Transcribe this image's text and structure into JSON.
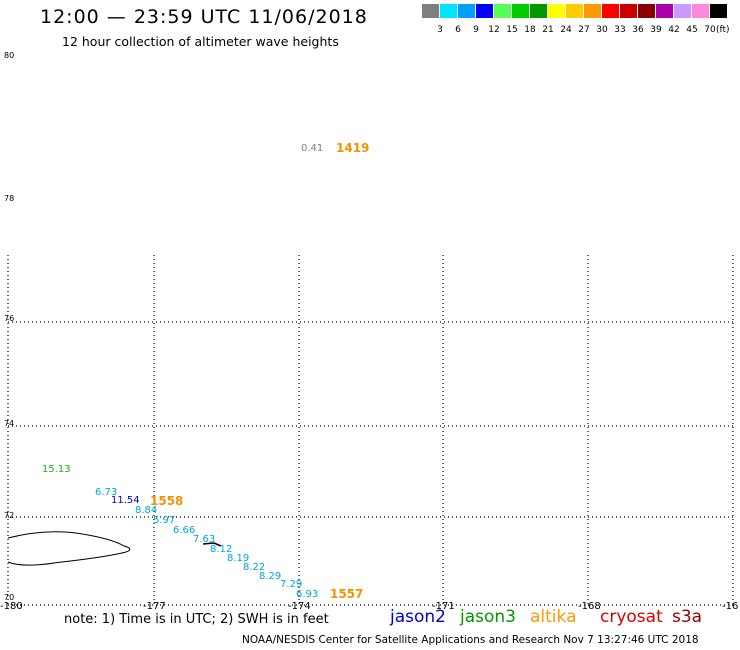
{
  "header": {
    "title": "12:00 — 23:59 UTC 11/06/2018",
    "subtitle": "12 hour collection of altimeter wave heights"
  },
  "legend": {
    "unit_label": "(ft)",
    "bins": [
      {
        "label": "3",
        "color": "#7f7f7f"
      },
      {
        "label": "6",
        "color": "#00e5ff"
      },
      {
        "label": "9",
        "color": "#00a0ff"
      },
      {
        "label": "12",
        "color": "#0000ff"
      },
      {
        "label": "15",
        "color": "#55ff55"
      },
      {
        "label": "18",
        "color": "#00cc00"
      },
      {
        "label": "21",
        "color": "#009900"
      },
      {
        "label": "24",
        "color": "#ffff00"
      },
      {
        "label": "27",
        "color": "#ffcc00"
      },
      {
        "label": "30",
        "color": "#ff9900"
      },
      {
        "label": "33",
        "color": "#ff0000"
      },
      {
        "label": "36",
        "color": "#cc0000"
      },
      {
        "label": "39",
        "color": "#8b0000"
      },
      {
        "label": "42",
        "color": "#aa00aa"
      },
      {
        "label": "45",
        "color": "#cc99ff"
      },
      {
        "label": "70",
        "color": "#ff88dd"
      },
      {
        "label": "",
        "color": "#000000"
      }
    ]
  },
  "axes": {
    "lat_labels": [
      "80",
      "78",
      "76",
      "74",
      "72",
      "70"
    ],
    "lon_labels": [
      "-180",
      "-177",
      "-174",
      "-171",
      "-168",
      "-16"
    ]
  },
  "observations": [
    {
      "text": "0.41",
      "color": "#808080"
    },
    {
      "text": "15.13",
      "color": "#22aa22"
    },
    {
      "text": "6.73",
      "color": "#00a8d8"
    },
    {
      "text": "11.54",
      "color": "#0000cc"
    },
    {
      "text": "8.84",
      "color": "#00a8d8"
    },
    {
      "text": "5.97",
      "color": "#00a8d8"
    },
    {
      "text": "6.66",
      "color": "#00a8d8"
    },
    {
      "text": "7.63",
      "color": "#00a8d8"
    },
    {
      "text": "8.12",
      "color": "#00a8d8"
    },
    {
      "text": "8.19",
      "color": "#00a8d8"
    },
    {
      "text": "8.22",
      "color": "#00a8d8"
    },
    {
      "text": "8.29",
      "color": "#00a8d8"
    },
    {
      "text": "7.29",
      "color": "#00a8d8"
    },
    {
      "text": "6.93",
      "color": "#00a8d8"
    }
  ],
  "pass_times": [
    {
      "text": "1419"
    },
    {
      "text": "1558"
    },
    {
      "text": "1557"
    }
  ],
  "footer": {
    "note": "note: 1) Time is in UTC; 2) SWH is in feet",
    "satellites": [
      {
        "name": "jason2",
        "color": "#0000dd"
      },
      {
        "name": "jason3",
        "color": "#009900"
      },
      {
        "name": "altika",
        "color": "#ff9900"
      },
      {
        "name": "cryosat",
        "color": "#dd0000"
      },
      {
        "name": "s3a",
        "color": "#990000"
      }
    ],
    "credit": "NOAA/NESDIS Center for Satellite Applications and Research    Nov  7 13:27:46 UTC 2018"
  }
}
